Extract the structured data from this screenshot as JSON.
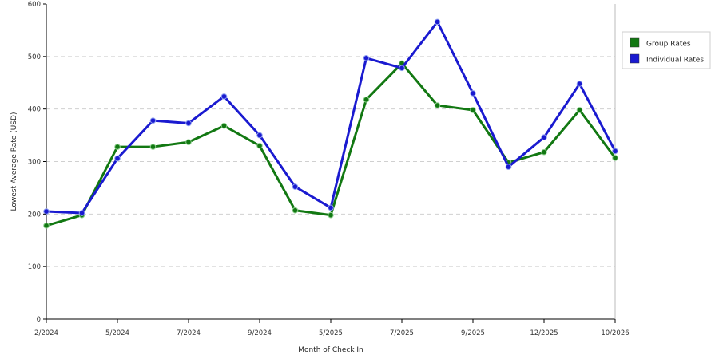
{
  "chart_data": {
    "type": "line",
    "title": "",
    "xlabel": "Month of Check In",
    "ylabel": "Lowest Average Rate (USD)",
    "ylim": [
      0,
      600
    ],
    "yticks": [
      0,
      100,
      200,
      300,
      400,
      500,
      600
    ],
    "grid": true,
    "legend_position": "right",
    "x_tick_labels": [
      {
        "index": 0,
        "label": "2/2024"
      },
      {
        "index": 2,
        "label": "5/2024"
      },
      {
        "index": 4,
        "label": "7/2024"
      },
      {
        "index": 6,
        "label": "9/2024"
      },
      {
        "index": 8,
        "label": "5/2025"
      },
      {
        "index": 10,
        "label": "7/2025"
      },
      {
        "index": 12,
        "label": "9/2025"
      },
      {
        "index": 14,
        "label": "12/2025"
      },
      {
        "index": 16,
        "label": "10/2026"
      }
    ],
    "x_count": 17,
    "series": [
      {
        "name": "Group Rates",
        "color": "#127812",
        "values": [
          178,
          198,
          328,
          328,
          337,
          368,
          330,
          207,
          198,
          418,
          487,
          407,
          398,
          298,
          318,
          398,
          307
        ]
      },
      {
        "name": "Individual Rates",
        "color": "#1a1ad0",
        "values": [
          205,
          202,
          306,
          378,
          373,
          424,
          350,
          252,
          212,
          497,
          478,
          566,
          430,
          290,
          346,
          448,
          320
        ]
      }
    ]
  }
}
